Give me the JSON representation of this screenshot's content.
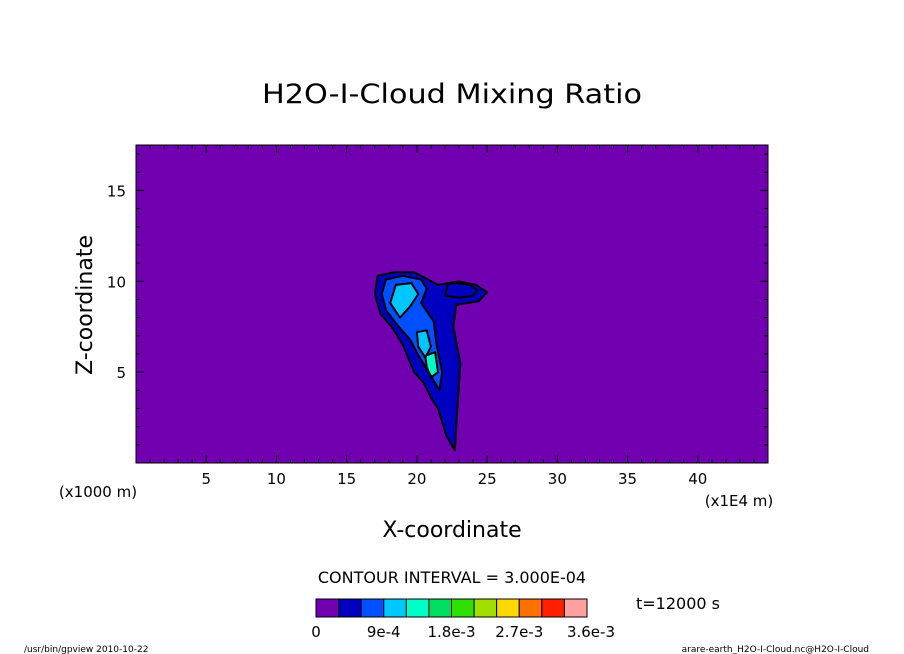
{
  "chart_data": {
    "type": "heatmap",
    "title": "H2O-I-Cloud Mixing Ratio",
    "xlabel": "X-coordinate",
    "ylabel": "Z-coordinate",
    "x_scale_note": "(x1E4 m)",
    "y_scale_note": "(x1000 m)",
    "xlim": [
      0,
      45
    ],
    "ylim": [
      0,
      17.5
    ],
    "x_ticks": [
      "5",
      "10",
      "15",
      "20",
      "25",
      "30",
      "35",
      "40"
    ],
    "x_tick_values": [
      5,
      10,
      15,
      20,
      25,
      30,
      35,
      40
    ],
    "y_ticks": [
      "5",
      "10",
      "15"
    ],
    "y_tick_values": [
      5,
      10,
      15
    ],
    "contour_interval_text": "CONTOUR INTERVAL = 3.000E-04",
    "time_text": "t=12000 s",
    "colorbar": {
      "colors": [
        "#7000b0",
        "#0000c0",
        "#0050ff",
        "#00c8ff",
        "#00ffc8",
        "#00e060",
        "#30e000",
        "#a0e000",
        "#ffd800",
        "#ff7000",
        "#ff2000",
        "#ffa0a0"
      ],
      "labels": [
        "0",
        "9e-4",
        "1.8e-3",
        "2.7e-3",
        "3.6e-3"
      ],
      "label_values": [
        0,
        0.0009,
        0.0018,
        0.0027,
        0.0036
      ],
      "min": 0,
      "max": 0.0036
    },
    "field_regions": [
      {
        "level": 1,
        "polygon": [
          [
            17.0,
            9.3
          ],
          [
            17.2,
            10.3
          ],
          [
            18.4,
            10.5
          ],
          [
            19.8,
            10.5
          ],
          [
            20.8,
            10.1
          ],
          [
            21.5,
            9.8
          ],
          [
            23.0,
            10.0
          ],
          [
            24.2,
            9.8
          ],
          [
            25.0,
            9.4
          ],
          [
            24.4,
            8.9
          ],
          [
            22.8,
            8.7
          ],
          [
            22.6,
            7.5
          ],
          [
            23.1,
            5.5
          ],
          [
            22.9,
            3.2
          ],
          [
            22.7,
            0.7
          ],
          [
            22.1,
            1.5
          ],
          [
            21.5,
            3.0
          ],
          [
            21.0,
            3.6
          ],
          [
            20.5,
            4.4
          ],
          [
            19.8,
            5.0
          ],
          [
            19.0,
            6.5
          ],
          [
            18.2,
            7.5
          ],
          [
            17.4,
            8.2
          ]
        ]
      },
      {
        "level": 1,
        "polygon": [
          [
            22.0,
            9.2
          ],
          [
            22.2,
            9.85
          ],
          [
            22.9,
            9.9
          ],
          [
            23.8,
            9.8
          ],
          [
            24.3,
            9.5
          ],
          [
            24.0,
            9.2
          ],
          [
            23.0,
            9.1
          ]
        ]
      },
      {
        "level": 2,
        "polygon": [
          [
            17.5,
            9.3
          ],
          [
            17.8,
            10.1
          ],
          [
            19.0,
            10.3
          ],
          [
            20.3,
            10.1
          ],
          [
            20.7,
            9.6
          ],
          [
            20.3,
            8.8
          ],
          [
            21.2,
            7.8
          ],
          [
            21.4,
            6.5
          ],
          [
            21.8,
            5.0
          ],
          [
            21.6,
            4.0
          ],
          [
            21.0,
            4.8
          ],
          [
            20.2,
            5.8
          ],
          [
            19.5,
            6.8
          ],
          [
            18.6,
            7.6
          ],
          [
            17.8,
            8.4
          ]
        ]
      },
      {
        "level": 3,
        "polygon": [
          [
            18.1,
            8.8
          ],
          [
            18.5,
            9.8
          ],
          [
            19.6,
            9.9
          ],
          [
            20.1,
            9.3
          ],
          [
            19.5,
            8.6
          ],
          [
            18.8,
            8.0
          ]
        ]
      },
      {
        "level": 3,
        "polygon": [
          [
            20.0,
            7.2
          ],
          [
            20.7,
            7.3
          ],
          [
            21.0,
            6.4
          ],
          [
            20.6,
            5.8
          ],
          [
            20.1,
            6.4
          ]
        ]
      },
      {
        "level": 4,
        "polygon": [
          [
            20.6,
            5.9
          ],
          [
            21.3,
            6.1
          ],
          [
            21.5,
            5.0
          ],
          [
            21.0,
            4.7
          ],
          [
            20.7,
            5.3
          ]
        ]
      }
    ]
  },
  "footer": {
    "left": "/usr/bin/gpview   2010-10-22",
    "right": "arare-earth_H2O-I-Cloud.nc@H2O-I-Cloud"
  }
}
